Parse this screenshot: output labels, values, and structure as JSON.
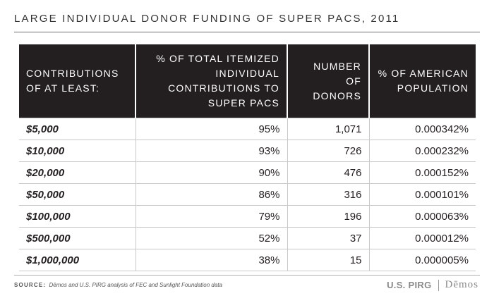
{
  "title": "LARGE INDIVIDUAL DONOR FUNDING OF SUPER PACS, 2011",
  "table": {
    "headers": [
      "CONTRIBUTIONS OF AT LEAST:",
      "% OF TOTAL ITEMIZED INDIVIDUAL CONTRIBUTIONS TO SUPER PACS",
      "NUMBER OF DONORS",
      "% OF AMERICAN POPULATION"
    ],
    "rows": [
      [
        "$5,000",
        "95%",
        "1,071",
        "0.000342%"
      ],
      [
        "$10,000",
        "93%",
        "726",
        "0.000232%"
      ],
      [
        "$20,000",
        "90%",
        "476",
        "0.000152%"
      ],
      [
        "$50,000",
        "86%",
        "316",
        "0.000101%"
      ],
      [
        "$100,000",
        "79%",
        "196",
        "0.000063%"
      ],
      [
        "$500,000",
        "52%",
        "37",
        "0.000012%"
      ],
      [
        "$1,000,000",
        "38%",
        "15",
        "0.000005%"
      ]
    ]
  },
  "source": {
    "label": "SOURCE:",
    "text": "Dēmos and U.S. PIRG analysis of FEC and Sunlight Foundation data"
  },
  "logos": {
    "pirg": "U.S. PIRG",
    "demos": "Dēmos"
  }
}
